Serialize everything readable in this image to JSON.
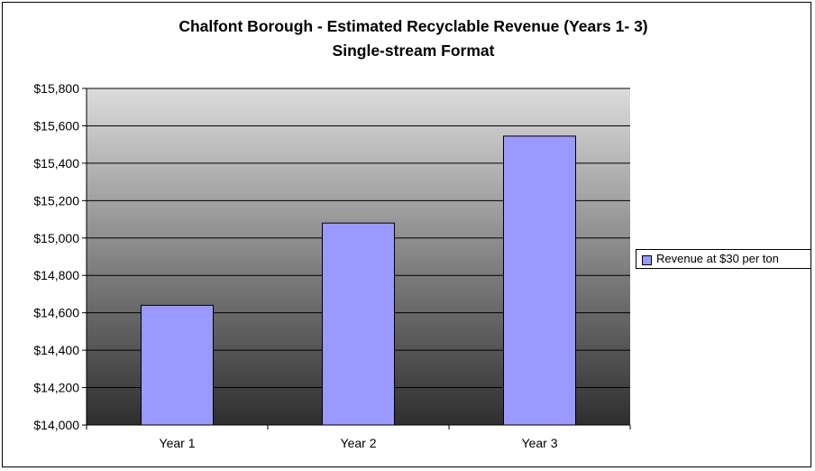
{
  "chart_data": {
    "type": "bar",
    "title": "Chalfont Borough - Estimated Recyclable Revenue (Years 1- 3)",
    "subtitle": "Single-stream Format",
    "xlabel": "",
    "ylabel": "",
    "categories": [
      "Year  1",
      "Year  2",
      "Year  3"
    ],
    "series": [
      {
        "name": "Revenue at $30 per ton",
        "values": [
          14640,
          15080,
          15545
        ]
      }
    ],
    "ylim": [
      14000,
      15800
    ],
    "ytick_labels": [
      "$14,000",
      "$14,200",
      "$14,400",
      "$14,600",
      "$14,800",
      "$15,000",
      "$15,200",
      "$15,400",
      "$15,600",
      "$15,800"
    ],
    "grid": true,
    "legend_position": "right",
    "bar_color": "#9999ff"
  }
}
